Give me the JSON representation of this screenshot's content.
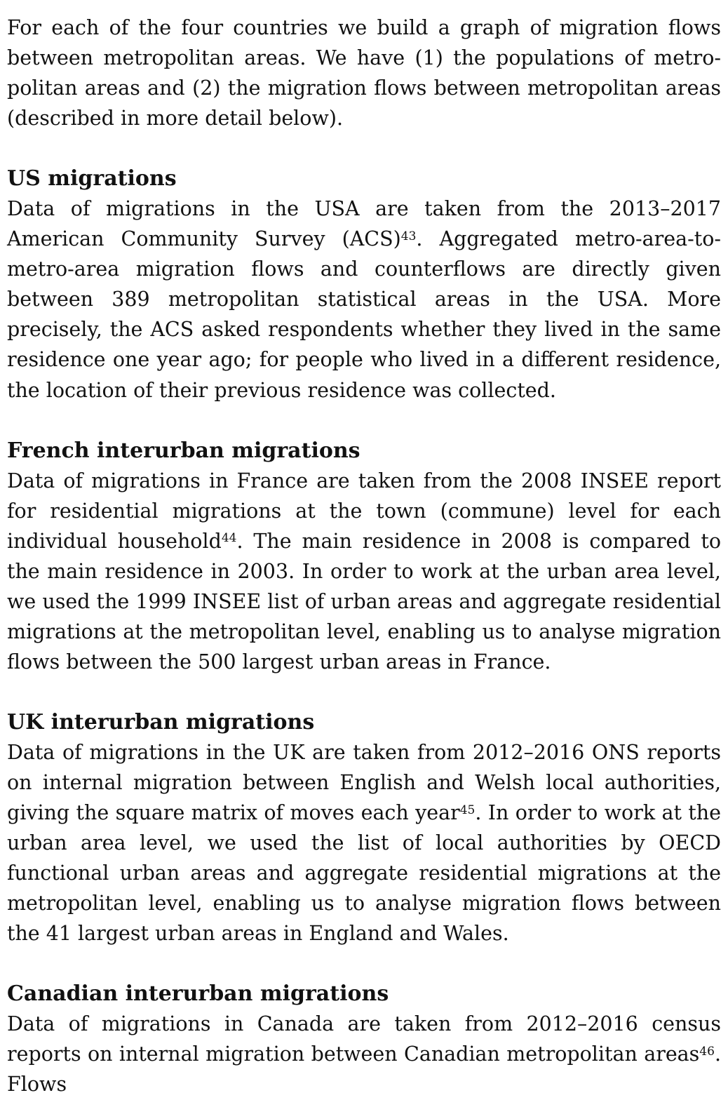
{
  "intro": "For each of the four countries we build a graph of migration flows between metropolitan areas. We have (1) the populations of metro­politan areas and (2) the migration flows between metropolitan areas (described in more detail below).",
  "sections": [
    {
      "heading": "US migrations",
      "text_before_ref": "Data of migrations in the USA are taken from the 2013–2017 American Community Survey (ACS)",
      "ref": "43",
      "text_after_ref": ". Aggregated metro-area-to-metro-area migration flows and counterflows are directly given between 389 met­ropolitan statistical areas in the USA. More precisely, the ACS asked respondents whether they lived in the same residence one year ago; for people who lived in a different residence, the location of their previous residence was collected."
    },
    {
      "heading": "French interurban migrations",
      "text_before_ref": "Data of migrations in France are taken from the 2008 INSEE report for residential migrations at the town (commune) level for each individual household",
      "ref": "44",
      "text_after_ref": ". The main residence in 2008 is compared to the main resi­dence in 2003. In order to work at the urban area level, we used the 1999 INSEE list of urban areas and aggregate residential migrations at the metropolitan level, enabling us to analyse migration flows between the 500 largest urban areas in France."
    },
    {
      "heading": "UK interurban migrations",
      "text_before_ref": "Data of migrations in the UK are taken from 2012–2016 ONS reports on internal migration between English and Welsh local authorities, giving the square matrix of moves each year",
      "ref": "45",
      "text_after_ref": ". In order to work at the urban area level, we used the list of local authorities by OECD functional urban areas and aggregate residential migrations at the metropolitan level, enabling us to analyse migration flows between the 41 largest urban areas in England and Wales."
    },
    {
      "heading": "Canadian interurban migrations",
      "text_before_ref": "Data of migrations in Canada are taken from 2012–2016 census reports on internal migration between Canadian metropolitan areas",
      "ref": "46",
      "text_after_ref": ". Flows"
    }
  ]
}
